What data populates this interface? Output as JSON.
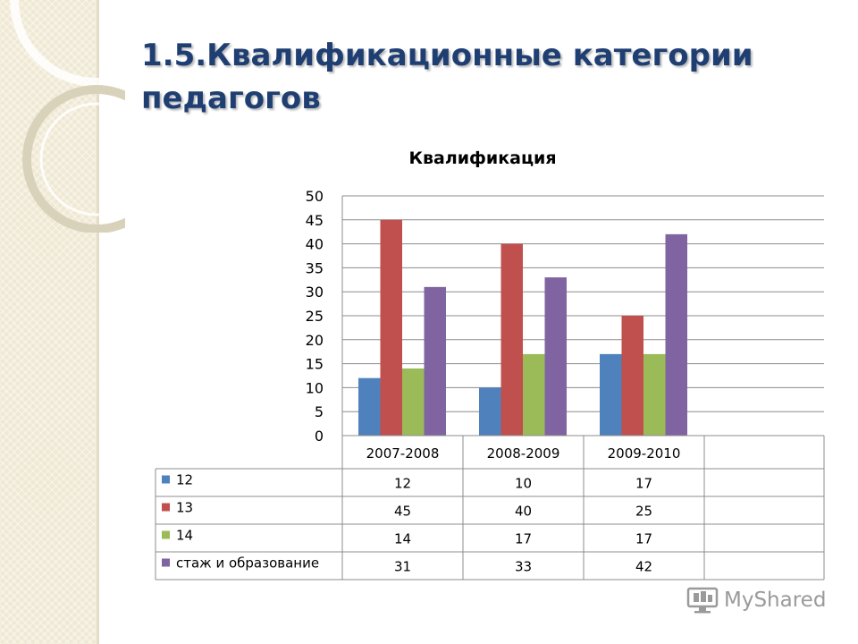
{
  "slide": {
    "title_line1": "1.5.Квалификационные категории",
    "title_line2": "педагогов"
  },
  "colors": {
    "title": "#1f3f73",
    "background_strip": "#efe8d2"
  },
  "logo": {
    "text": "MyShared",
    "icon": "monitor-icon"
  },
  "chart_data": {
    "type": "bar",
    "title": "Квалификация",
    "categories": [
      "2007-2008",
      "2008-2009",
      "2009-2010"
    ],
    "series": [
      {
        "name": "12",
        "values": [
          12,
          10,
          17
        ],
        "color": "#4f81bd"
      },
      {
        "name": "13",
        "values": [
          45,
          40,
          25
        ],
        "color": "#c0504d"
      },
      {
        "name": "14",
        "values": [
          14,
          17,
          17
        ],
        "color": "#9bbb59"
      },
      {
        "name": "стаж и образование",
        "values": [
          31,
          33,
          42
        ],
        "color": "#8064a2"
      }
    ],
    "yticks": [
      "0",
      "5",
      "10",
      "15",
      "20",
      "25",
      "30",
      "35",
      "40",
      "45",
      "50"
    ],
    "ylim": [
      0,
      50
    ],
    "grid": true,
    "legend": "data-table"
  }
}
